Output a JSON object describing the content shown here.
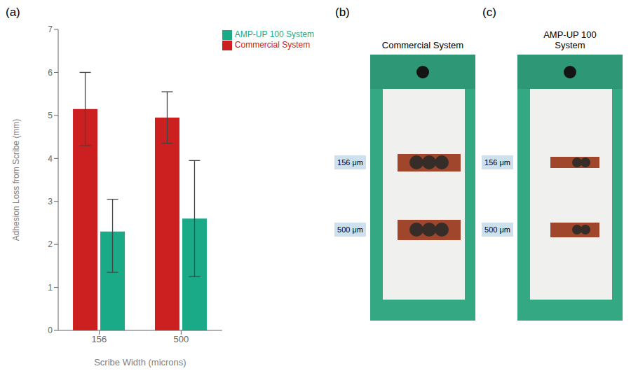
{
  "chart_data": {
    "type": "bar",
    "categories": [
      "156",
      "500"
    ],
    "series": [
      {
        "name": "Commercial System",
        "color": "#cc2020",
        "values": [
          5.15,
          4.95
        ],
        "errors_up": [
          0.85,
          0.6
        ],
        "errors_down": [
          0.85,
          0.6
        ]
      },
      {
        "name": "AMP-UP 100 System",
        "color": "#1aaa88",
        "values": [
          2.3,
          2.6
        ],
        "errors_up": [
          0.75,
          1.35
        ],
        "errors_down": [
          0.95,
          1.35
        ]
      }
    ],
    "xlabel": "Scribe Width (microns)",
    "ylabel": "Adhesion Loss from Scribe (mm)",
    "ylim": [
      0,
      7
    ],
    "yticks": [
      0,
      1,
      2,
      3,
      4,
      5,
      6,
      7
    ],
    "grid": false,
    "legend": "upper right",
    "annotations": [
      "(a)",
      "(b)",
      "Commercial System",
      "156 μm",
      "500 μm",
      "(c)",
      "AMP-UP 100\nSystem",
      "156 μm",
      "500 μm"
    ]
  }
}
